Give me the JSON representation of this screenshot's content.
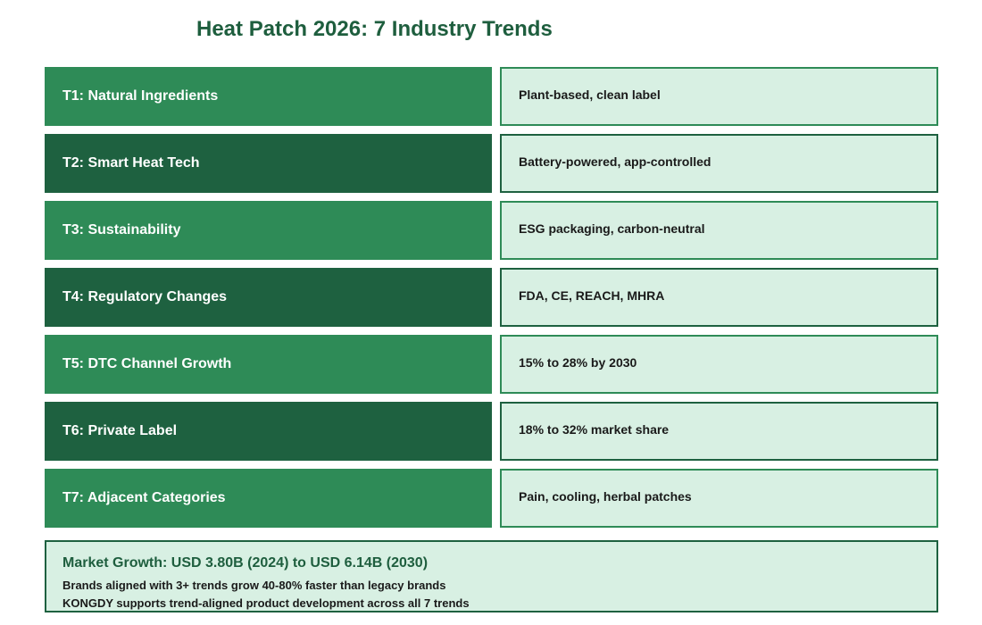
{
  "title": "Heat Patch 2026: 7 Industry Trends",
  "colors": {
    "title": "#1e5e3e",
    "trend_light": "#2e8b57",
    "trend_dark": "#1e6140",
    "detail_bg": "#d8f0e3"
  },
  "trends": [
    {
      "label": "T1: Natural Ingredients",
      "detail": "Plant-based, clean label"
    },
    {
      "label": "T2: Smart Heat Tech",
      "detail": "Battery-powered, app-controlled"
    },
    {
      "label": "T3: Sustainability",
      "detail": "ESG packaging, carbon-neutral"
    },
    {
      "label": "T4: Regulatory Changes",
      "detail": "FDA, CE, REACH, MHRA"
    },
    {
      "label": "T5: DTC Channel Growth",
      "detail": "15% to 28% by 2030"
    },
    {
      "label": "T6: Private Label",
      "detail": "18% to 32% market share"
    },
    {
      "label": "T7: Adjacent Categories",
      "detail": "Pain, cooling, herbal patches"
    }
  ],
  "summary": {
    "headline": "Market Growth: USD 3.80B (2024) to USD 6.14B (2030)",
    "line1": "Brands aligned with 3+ trends grow 40-80% faster than legacy brands",
    "line2": "KONGDY supports trend-aligned product development across all 7 trends"
  }
}
